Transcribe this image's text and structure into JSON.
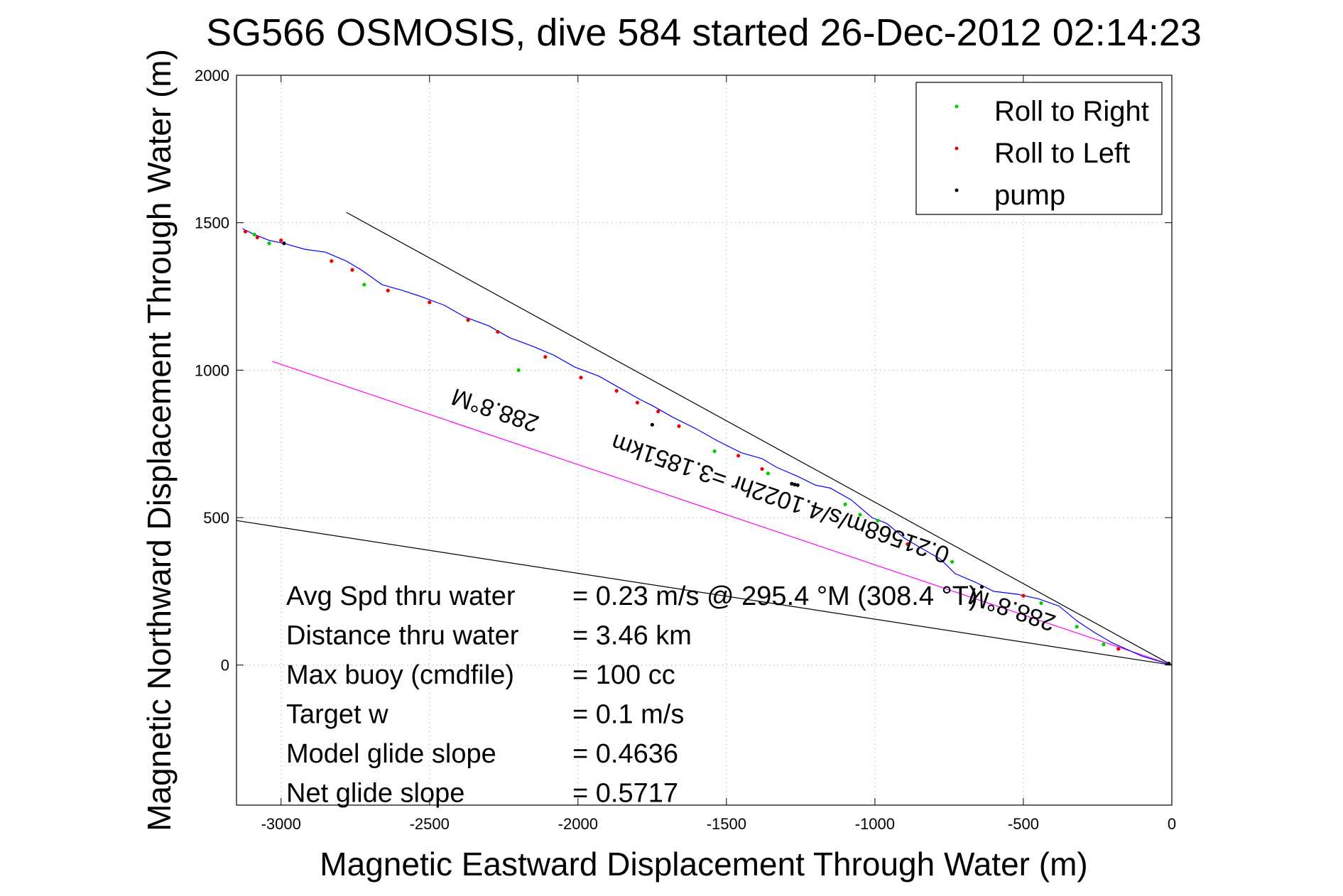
{
  "chart_data": {
    "type": "line",
    "title": "SG566 OSMOSIS, dive 584 started 26-Dec-2012 02:14:23",
    "xlabel": "Magnetic Eastward Displacement Through Water (m)",
    "ylabel": "Magnetic Northward Displacement Through Water (m)",
    "xlim": [
      -3150,
      0
    ],
    "ylim": [
      -475,
      2000
    ],
    "xticks": [
      -3000,
      -2500,
      -2000,
      -1500,
      -1000,
      -500,
      0
    ],
    "yticks": [
      0,
      500,
      1000,
      1500,
      2000
    ],
    "grid": true,
    "legend_position": "top-right",
    "legend": [
      {
        "label": "Roll to Right",
        "color": "#00cc00"
      },
      {
        "label": "Roll to Left",
        "color": "#ee0000"
      },
      {
        "label": "pump",
        "color": "#000000"
      }
    ],
    "track": {
      "color": "#0000ff",
      "x": [
        0,
        -100,
        -200,
        -260,
        -320,
        -380,
        -450,
        -520,
        -600,
        -660,
        -730,
        -780,
        -850,
        -900,
        -960,
        -1010,
        -1080,
        -1150,
        -1200,
        -1260,
        -1330,
        -1380,
        -1450,
        -1530,
        -1600,
        -1680,
        -1750,
        -1790,
        -1860,
        -1930,
        -2010,
        -2080,
        -2150,
        -2230,
        -2300,
        -2380,
        -2450,
        -2530,
        -2590,
        -2660,
        -2730,
        -2780,
        -2850,
        -2920,
        -2990,
        -3040,
        -3090,
        -3130
      ],
      "y": [
        0,
        30,
        75,
        110,
        150,
        200,
        225,
        240,
        250,
        280,
        310,
        360,
        400,
        430,
        480,
        500,
        560,
        600,
        610,
        640,
        670,
        700,
        720,
        760,
        800,
        840,
        880,
        900,
        940,
        980,
        1010,
        1050,
        1080,
        1110,
        1150,
        1180,
        1220,
        1250,
        1270,
        1290,
        1340,
        1370,
        1400,
        1410,
        1430,
        1440,
        1460,
        1480
      ]
    },
    "roll_right_points": {
      "x": [
        -230,
        -320,
        -440,
        -740,
        -990,
        -1050,
        -1100,
        -1360,
        -1540,
        -2200,
        -2720,
        -3040,
        -3090
      ],
      "y": [
        70,
        130,
        210,
        350,
        490,
        510,
        545,
        650,
        725,
        1000,
        1290,
        1430,
        1460
      ]
    },
    "roll_left_points": {
      "x": [
        -180,
        -500,
        -890,
        -1380,
        -1460,
        -1660,
        -1730,
        -1800,
        -1870,
        -1990,
        -2110,
        -2270,
        -2370,
        -2500,
        -2640,
        -2760,
        -2830,
        -3000,
        -3080,
        -3120
      ],
      "y": [
        55,
        235,
        410,
        665,
        710,
        810,
        860,
        890,
        930,
        975,
        1045,
        1130,
        1170,
        1230,
        1270,
        1340,
        1370,
        1440,
        1450,
        1470
      ]
    },
    "pump_points": {
      "x": [
        -10,
        -1260,
        -1270,
        -1280,
        -1750,
        -2990,
        -640
      ],
      "y": [
        5,
        610,
        612,
        615,
        815,
        1430,
        265
      ]
    },
    "reference_lines": [
      {
        "name": "upper-bound",
        "color": "#000000",
        "x": [
          -2780,
          0
        ],
        "y": [
          1535,
          0
        ]
      },
      {
        "name": "lower-bound",
        "color": "#000000",
        "x": [
          -3150,
          0
        ],
        "y": [
          490,
          0
        ]
      },
      {
        "name": "average-heading",
        "color": "#ff00ff",
        "x": [
          -3030,
          0
        ],
        "y": [
          1030,
          0
        ]
      }
    ],
    "annotations": [
      {
        "text": "288.8°M",
        "x": -2270,
        "y": 890,
        "rotation": 198.8
      },
      {
        "text": "0.21568m/s/4.1022hr =3.1851km",
        "x": -1310,
        "y": 590,
        "rotation": 198.8
      },
      {
        "text": "288.8°M",
        "x": -530,
        "y": 215,
        "rotation": 198.8
      }
    ],
    "stats": [
      {
        "label": "Avg Spd thru water",
        "value": "=  0.23 m/s @ 295.4 °M (308.4 °T)"
      },
      {
        "label": "Distance thru water",
        "value": "=  3.46 km"
      },
      {
        "label": "Max buoy (cmdfile)",
        "value": "= 100 cc"
      },
      {
        "label": "Target w",
        "value": "= 0.1 m/s"
      },
      {
        "label": "Model glide slope",
        "value": "= 0.4636"
      },
      {
        "label": "Net glide slope",
        "value": "= 0.5717"
      }
    ]
  }
}
